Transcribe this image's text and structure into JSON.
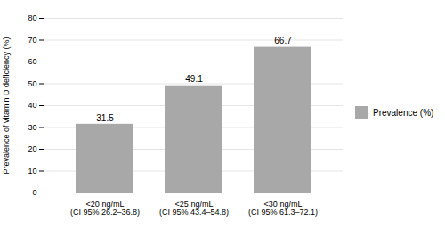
{
  "chart_data": {
    "type": "bar",
    "categories": [
      "<20 ng/mL\n(CI 95% 26.2–36.8)",
      "<25 ng/mL\n(CI 95% 43.4–54.8)",
      "<30 ng/mL\n(CI 95% 61.3–72.1)"
    ],
    "series": [
      {
        "name": "Prevalence (%)",
        "color": "#a8a8a8",
        "values": [
          31.5,
          49.1,
          66.7
        ]
      }
    ],
    "ylabel": "Prevalence of vitamin D deficiency (%)",
    "ylim": [
      0,
      80
    ],
    "yticks": [
      0,
      10,
      20,
      30,
      40,
      50,
      60,
      70,
      80
    ],
    "grid": true,
    "legend": "right",
    "data_labels": true
  }
}
